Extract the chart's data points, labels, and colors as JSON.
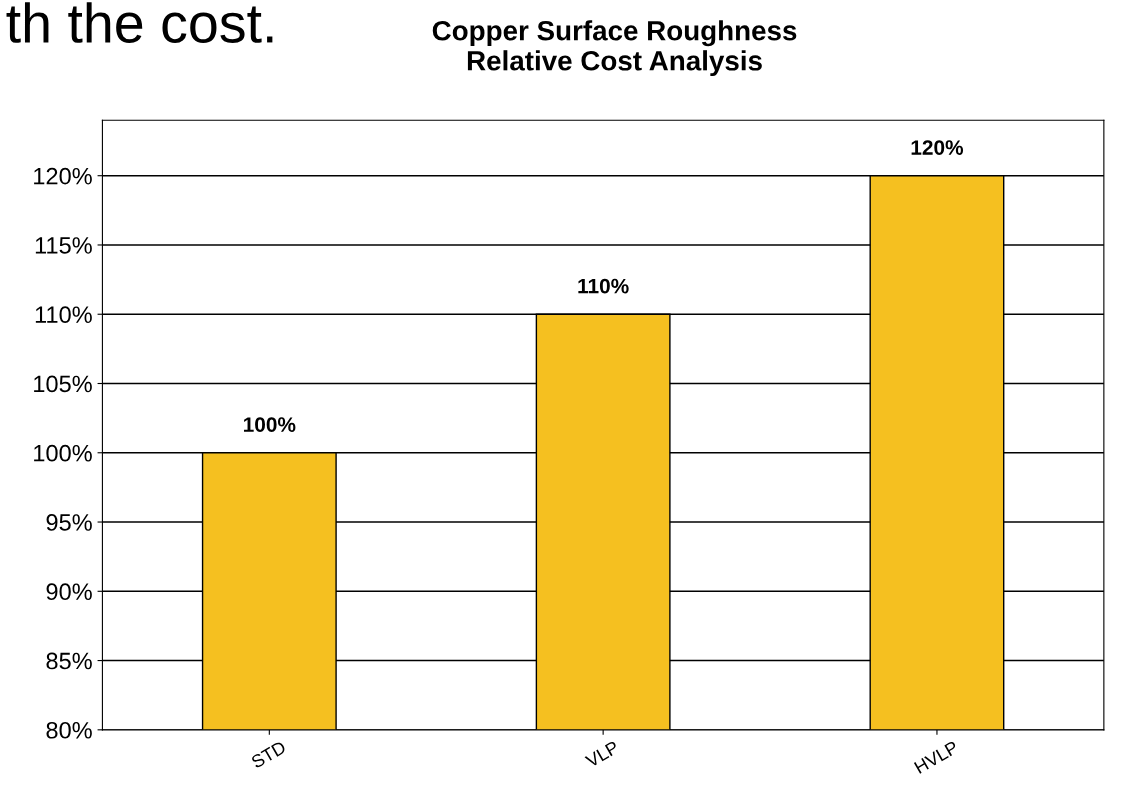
{
  "chart_data": {
    "type": "bar",
    "title": "Copper Surface Roughness\nRelative Cost Analysis",
    "categories": [
      "STD",
      "VLP",
      "HVLP"
    ],
    "values": [
      100,
      110,
      120
    ],
    "value_labels": [
      "100%",
      "110%",
      "120%"
    ],
    "color": "#f5c020",
    "ylim": [
      80,
      124
    ],
    "yticks": [
      {
        "value": 80,
        "label": "80%"
      },
      {
        "value": 85,
        "label": "85%"
      },
      {
        "value": 90,
        "label": "90%"
      },
      {
        "value": 95,
        "label": "95%"
      },
      {
        "value": 100,
        "label": "100%"
      },
      {
        "value": 105,
        "label": "105%"
      },
      {
        "value": 110,
        "label": "110%"
      },
      {
        "value": 115,
        "label": "115%"
      },
      {
        "value": 120,
        "label": "120%"
      }
    ],
    "grid": "y",
    "legend": false,
    "annotations": [
      "th the cost."
    ]
  }
}
